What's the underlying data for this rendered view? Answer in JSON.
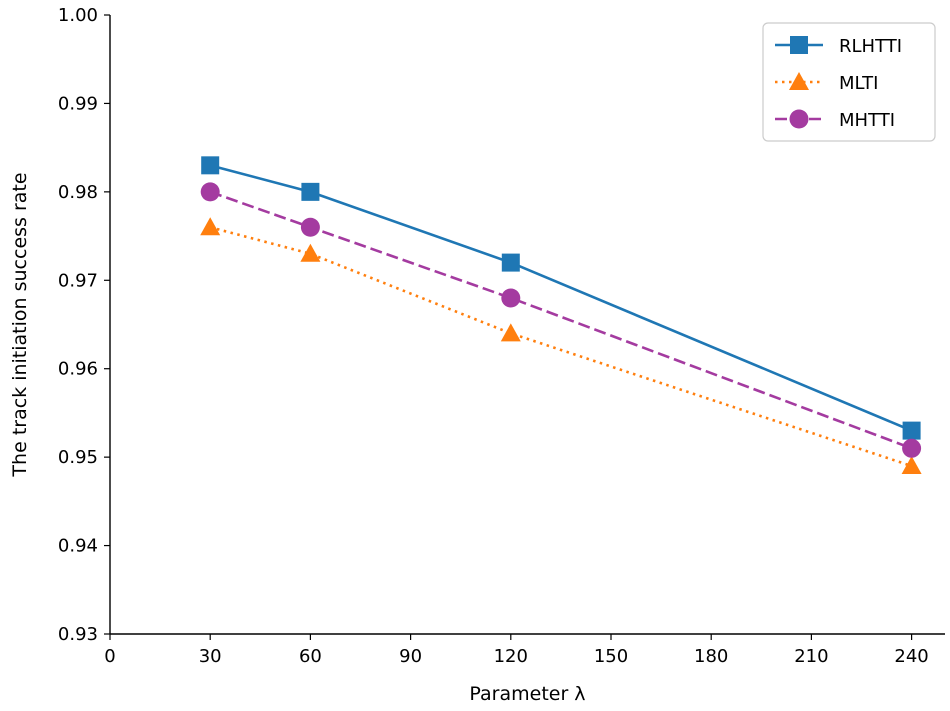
{
  "chart_data": {
    "type": "line",
    "title": "",
    "xlabel": "Parameter λ",
    "ylabel": "The track initiation success rate",
    "xlim": [
      0,
      250
    ],
    "ylim": [
      0.93,
      1.0
    ],
    "xticks": [
      0,
      30,
      60,
      90,
      120,
      150,
      180,
      210,
      240
    ],
    "yticks": [
      0.93,
      0.94,
      0.95,
      0.96,
      0.97,
      0.98,
      0.99,
      1.0
    ],
    "xtick_labels": [
      "0",
      "30",
      "60",
      "90",
      "120",
      "150",
      "180",
      "210",
      "240"
    ],
    "ytick_labels": [
      "0.93",
      "0.94",
      "0.95",
      "0.96",
      "0.97",
      "0.98",
      "0.99",
      "1.00"
    ],
    "x": [
      30,
      60,
      120,
      240
    ],
    "series": [
      {
        "name": "RLHTTI",
        "values": [
          0.983,
          0.98,
          0.972,
          0.953
        ],
        "color": "#1f77b4",
        "linestyle": "solid",
        "marker": "square"
      },
      {
        "name": "MLTI",
        "values": [
          0.976,
          0.973,
          0.964,
          0.949
        ],
        "color": "#ff7f0e",
        "linestyle": "dotted",
        "marker": "triangle"
      },
      {
        "name": "MHTTI",
        "values": [
          0.98,
          0.976,
          0.968,
          0.951
        ],
        "color": "#a43ba0",
        "linestyle": "dashed",
        "marker": "circle"
      }
    ],
    "legend_position": "top-right",
    "grid": false
  }
}
